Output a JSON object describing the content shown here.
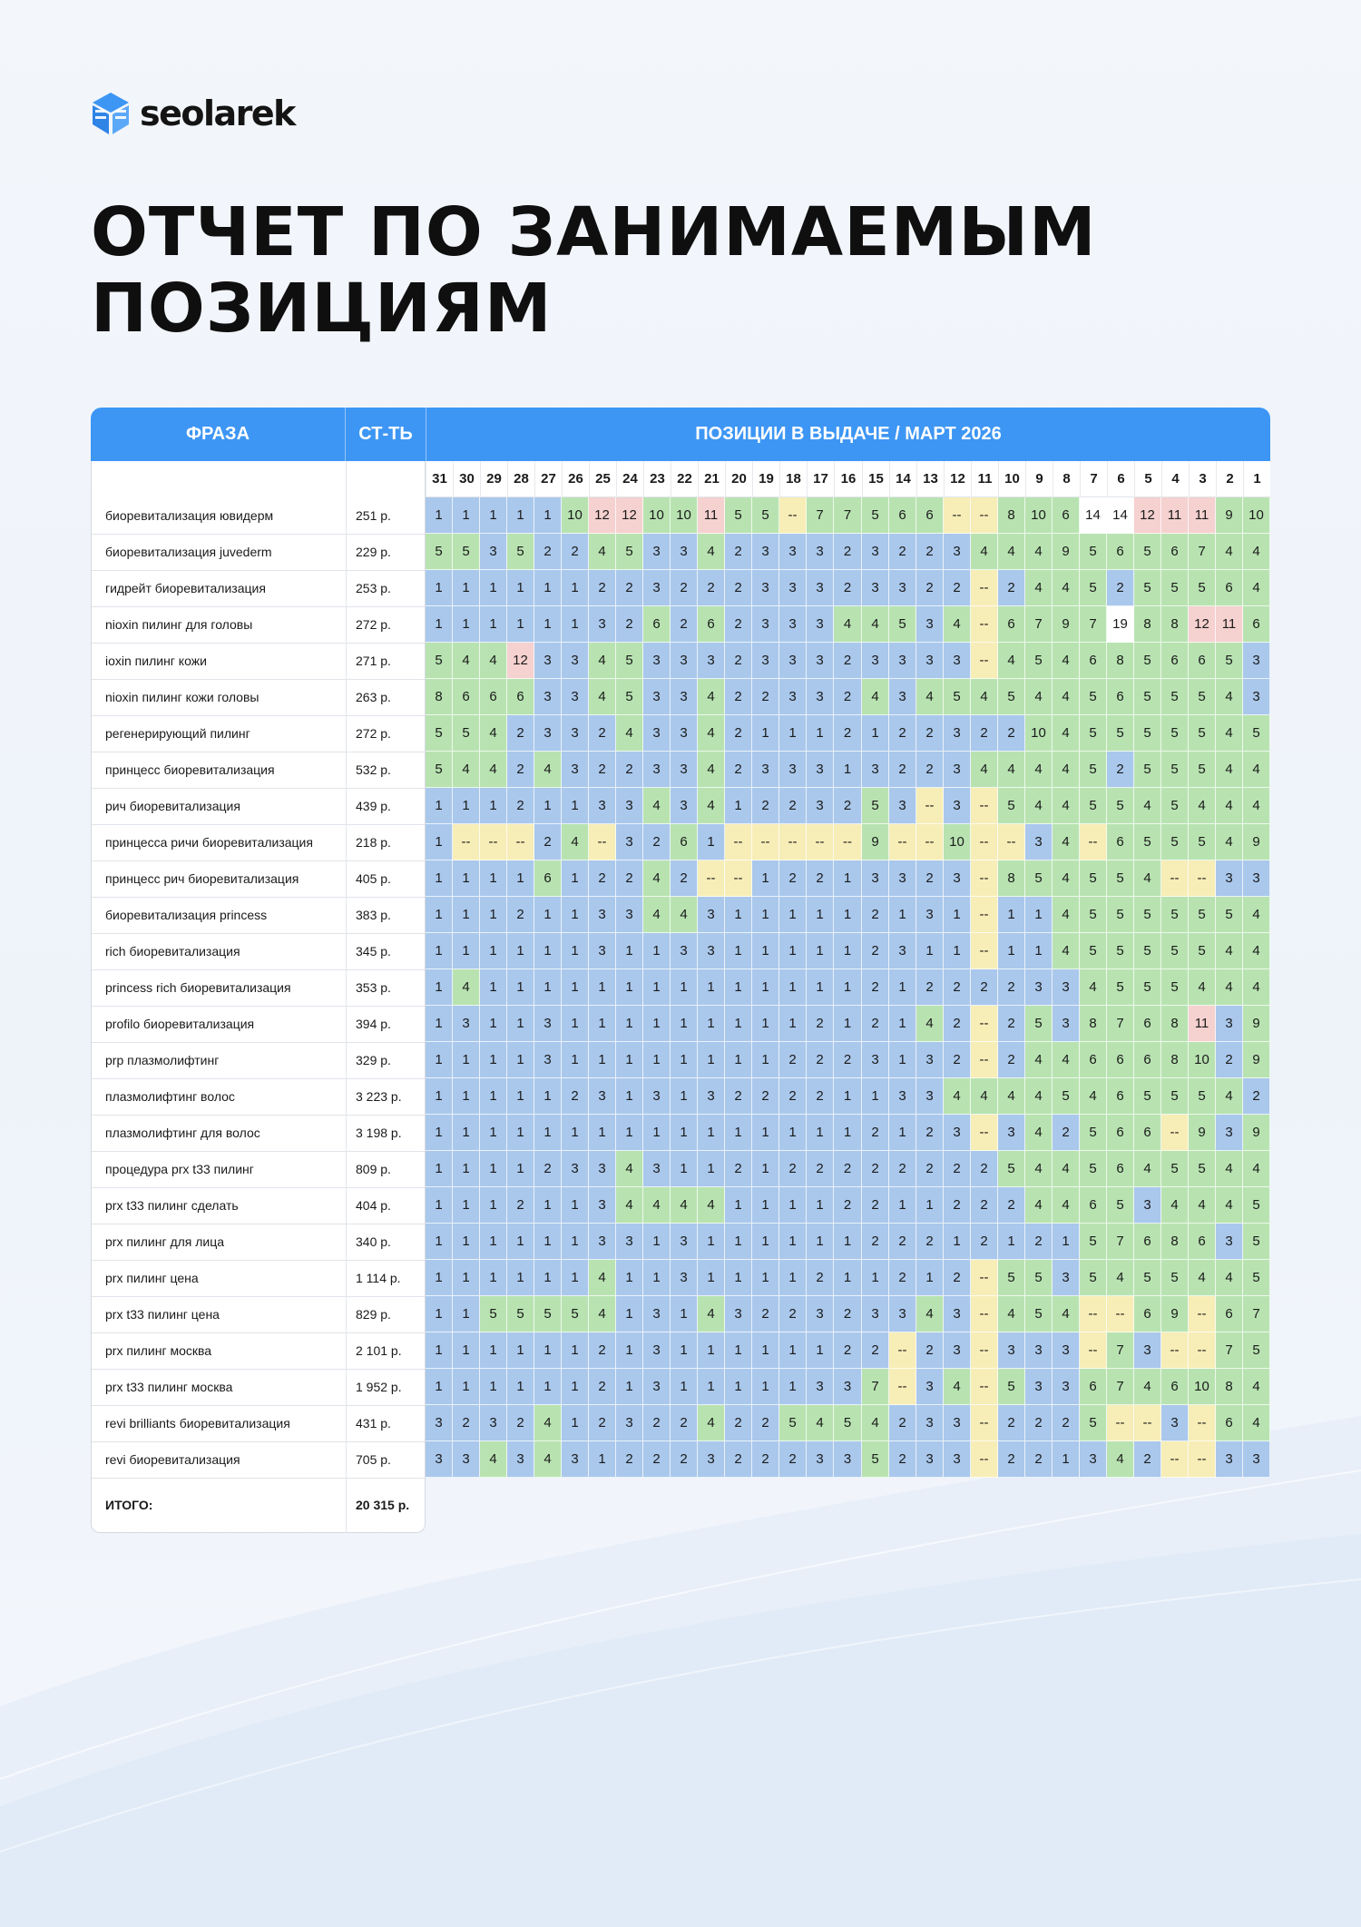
{
  "brand": {
    "name": "seolarek"
  },
  "title": {
    "line1": "ОТЧЕТ ПО ЗАНИМАЕМЫМ",
    "line2": "ПОЗИЦИЯМ"
  },
  "colors": {
    "header": "#3d96f4",
    "pos_1_3": "#aac8ec",
    "pos_4_10": "#b8e3b1",
    "pos_11_plus": "#f5d1cf",
    "not_found": "#f7edb7"
  },
  "table": {
    "headers": {
      "phrase": "ФРАЗА",
      "cost": "СТ-ТЬ",
      "positions": "ПОЗИЦИИ В ВЫДАЧЕ / МАРТ 2026"
    },
    "days": [
      "31",
      "30",
      "29",
      "28",
      "27",
      "26",
      "25",
      "24",
      "23",
      "22",
      "21",
      "20",
      "19",
      "18",
      "17",
      "16",
      "15",
      "14",
      "13",
      "12",
      "11",
      "10",
      "9",
      "8",
      "7",
      "6",
      "5",
      "4",
      "3",
      "2",
      "1"
    ],
    "rows": [
      {
        "phrase": "биоревитализация ювидерм",
        "cost": "251 р.",
        "pos": [
          "1",
          "1",
          "1",
          "1",
          "1",
          "10",
          "12",
          "12",
          "10",
          "10",
          "11",
          "5",
          "5",
          "--",
          "7",
          "7",
          "5",
          "6",
          "6",
          "--",
          "--",
          "8",
          "10",
          "6",
          "14",
          "14",
          "12",
          "11",
          "11",
          "9",
          "10"
        ]
      },
      {
        "phrase": "биоревитализация juvederm",
        "cost": "229 р.",
        "pos": [
          "5",
          "5",
          "3",
          "5",
          "2",
          "2",
          "4",
          "5",
          "3",
          "3",
          "4",
          "2",
          "3",
          "3",
          "3",
          "2",
          "3",
          "2",
          "2",
          "3",
          "4",
          "4",
          "4",
          "9",
          "5",
          "6",
          "5",
          "6",
          "7",
          "4",
          "4"
        ]
      },
      {
        "phrase": "гидрейт биоревитализация",
        "cost": "253 р.",
        "pos": [
          "1",
          "1",
          "1",
          "1",
          "1",
          "1",
          "2",
          "2",
          "3",
          "2",
          "2",
          "2",
          "3",
          "3",
          "3",
          "2",
          "3",
          "3",
          "2",
          "2",
          "--",
          "2",
          "4",
          "4",
          "5",
          "2",
          "5",
          "5",
          "5",
          "6",
          "4"
        ]
      },
      {
        "phrase": "nioxin пилинг для головы",
        "cost": "272 р.",
        "pos": [
          "1",
          "1",
          "1",
          "1",
          "1",
          "1",
          "3",
          "2",
          "6",
          "2",
          "6",
          "2",
          "3",
          "3",
          "3",
          "4",
          "4",
          "5",
          "3",
          "4",
          "--",
          "6",
          "7",
          "9",
          "7",
          "19",
          "8",
          "8",
          "12",
          "11",
          "6"
        ]
      },
      {
        "phrase": "ioxin пилинг кожи",
        "cost": "271 р.",
        "pos": [
          "5",
          "4",
          "4",
          "12",
          "3",
          "3",
          "4",
          "5",
          "3",
          "3",
          "3",
          "2",
          "3",
          "3",
          "3",
          "2",
          "3",
          "3",
          "3",
          "3",
          "--",
          "4",
          "5",
          "4",
          "6",
          "8",
          "5",
          "6",
          "6",
          "5",
          "3"
        ]
      },
      {
        "phrase": "nioxin пилинг кожи головы",
        "cost": "263 р.",
        "pos": [
          "8",
          "6",
          "6",
          "6",
          "3",
          "3",
          "4",
          "5",
          "3",
          "3",
          "4",
          "2",
          "2",
          "3",
          "3",
          "2",
          "4",
          "3",
          "4",
          "5",
          "4",
          "5",
          "4",
          "4",
          "5",
          "6",
          "5",
          "5",
          "5",
          "4",
          "3"
        ]
      },
      {
        "phrase": "регенерирующий пилинг",
        "cost": "272 р.",
        "pos": [
          "5",
          "5",
          "4",
          "2",
          "3",
          "3",
          "2",
          "4",
          "3",
          "3",
          "4",
          "2",
          "1",
          "1",
          "1",
          "2",
          "1",
          "2",
          "2",
          "3",
          "2",
          "2",
          "10",
          "4",
          "5",
          "5",
          "5",
          "5",
          "5",
          "4",
          "5"
        ]
      },
      {
        "phrase": "принцесс биоревитализация",
        "cost": "532 р.",
        "pos": [
          "5",
          "4",
          "4",
          "2",
          "4",
          "3",
          "2",
          "2",
          "3",
          "3",
          "4",
          "2",
          "3",
          "3",
          "3",
          "1",
          "3",
          "2",
          "2",
          "3",
          "4",
          "4",
          "4",
          "4",
          "5",
          "2",
          "5",
          "5",
          "5",
          "4",
          "4"
        ]
      },
      {
        "phrase": "рич биоревитализация",
        "cost": "439 р.",
        "pos": [
          "1",
          "1",
          "1",
          "2",
          "1",
          "1",
          "3",
          "3",
          "4",
          "3",
          "4",
          "1",
          "2",
          "2",
          "3",
          "2",
          "5",
          "3",
          "--",
          "3",
          "--",
          "5",
          "4",
          "4",
          "5",
          "5",
          "4",
          "5",
          "4",
          "4",
          "4"
        ]
      },
      {
        "phrase": "принцесса ричи биоревитализация",
        "cost": "218 р.",
        "pos": [
          "1",
          "--",
          "--",
          "--",
          "2",
          "4",
          "--",
          "3",
          "2",
          "6",
          "1",
          "--",
          "--",
          "--",
          "--",
          "--",
          "9",
          "--",
          "--",
          "10",
          "--",
          "--",
          "3",
          "4",
          "--",
          "6",
          "5",
          "5",
          "5",
          "4",
          "9"
        ]
      },
      {
        "phrase": "принцесс рич биоревитализация",
        "cost": "405 р.",
        "pos": [
          "1",
          "1",
          "1",
          "1",
          "6",
          "1",
          "2",
          "2",
          "4",
          "2",
          "--",
          "--",
          "1",
          "2",
          "2",
          "1",
          "3",
          "3",
          "2",
          "3",
          "--",
          "8",
          "5",
          "4",
          "5",
          "5",
          "4",
          "--",
          "--",
          "3",
          "3"
        ]
      },
      {
        "phrase": "биоревитализация princess",
        "cost": "383 р.",
        "pos": [
          "1",
          "1",
          "1",
          "2",
          "1",
          "1",
          "3",
          "3",
          "4",
          "4",
          "3",
          "1",
          "1",
          "1",
          "1",
          "1",
          "2",
          "1",
          "3",
          "1",
          "--",
          "1",
          "1",
          "4",
          "5",
          "5",
          "5",
          "5",
          "5",
          "5",
          "4"
        ]
      },
      {
        "phrase": "rich биоревитализация",
        "cost": "345 р.",
        "pos": [
          "1",
          "1",
          "1",
          "1",
          "1",
          "1",
          "3",
          "1",
          "1",
          "3",
          "3",
          "1",
          "1",
          "1",
          "1",
          "1",
          "2",
          "3",
          "1",
          "1",
          "--",
          "1",
          "1",
          "4",
          "5",
          "5",
          "5",
          "5",
          "5",
          "4",
          "4"
        ]
      },
      {
        "phrase": "princess rich биоревитализация",
        "cost": "353 р.",
        "pos": [
          "1",
          "4",
          "1",
          "1",
          "1",
          "1",
          "1",
          "1",
          "1",
          "1",
          "1",
          "1",
          "1",
          "1",
          "1",
          "1",
          "2",
          "1",
          "2",
          "2",
          "2",
          "2",
          "3",
          "3",
          "4",
          "5",
          "5",
          "5",
          "4",
          "4",
          "4"
        ]
      },
      {
        "phrase": "profilo биоревитализация",
        "cost": "394 р.",
        "pos": [
          "1",
          "3",
          "1",
          "1",
          "3",
          "1",
          "1",
          "1",
          "1",
          "1",
          "1",
          "1",
          "1",
          "1",
          "2",
          "1",
          "2",
          "1",
          "4",
          "2",
          "--",
          "2",
          "5",
          "3",
          "8",
          "7",
          "6",
          "8",
          "11",
          "3",
          "9"
        ]
      },
      {
        "phrase": "prp плазмолифтинг",
        "cost": "329 р.",
        "pos": [
          "1",
          "1",
          "1",
          "1",
          "3",
          "1",
          "1",
          "1",
          "1",
          "1",
          "1",
          "1",
          "1",
          "2",
          "2",
          "2",
          "3",
          "1",
          "3",
          "2",
          "--",
          "2",
          "4",
          "4",
          "6",
          "6",
          "6",
          "8",
          "10",
          "2",
          "9"
        ]
      },
      {
        "phrase": "плазмолифтинг волос",
        "cost": "3 223 р.",
        "pos": [
          "1",
          "1",
          "1",
          "1",
          "1",
          "2",
          "3",
          "1",
          "3",
          "1",
          "3",
          "2",
          "2",
          "2",
          "2",
          "1",
          "1",
          "3",
          "3",
          "4",
          "4",
          "4",
          "4",
          "5",
          "4",
          "6",
          "5",
          "5",
          "5",
          "4",
          "2"
        ]
      },
      {
        "phrase": "плазмолифтинг для волос",
        "cost": "3 198 р.",
        "pos": [
          "1",
          "1",
          "1",
          "1",
          "1",
          "1",
          "1",
          "1",
          "1",
          "1",
          "1",
          "1",
          "1",
          "1",
          "1",
          "1",
          "2",
          "1",
          "2",
          "3",
          "--",
          "3",
          "4",
          "2",
          "5",
          "6",
          "6",
          "--",
          "9",
          "3",
          "9"
        ]
      },
      {
        "phrase": "процедура prx t33 пилинг",
        "cost": "809 р.",
        "pos": [
          "1",
          "1",
          "1",
          "1",
          "2",
          "3",
          "3",
          "4",
          "3",
          "1",
          "1",
          "2",
          "1",
          "2",
          "2",
          "2",
          "2",
          "2",
          "2",
          "2",
          "2",
          "5",
          "4",
          "4",
          "5",
          "6",
          "4",
          "5",
          "5",
          "4",
          "4"
        ]
      },
      {
        "phrase": "prx t33 пилинг сделать",
        "cost": "404 р.",
        "pos": [
          "1",
          "1",
          "1",
          "2",
          "1",
          "1",
          "3",
          "4",
          "4",
          "4",
          "4",
          "1",
          "1",
          "1",
          "1",
          "2",
          "2",
          "1",
          "1",
          "2",
          "2",
          "2",
          "4",
          "4",
          "6",
          "5",
          "3",
          "4",
          "4",
          "4",
          "5"
        ]
      },
      {
        "phrase": "prx пилинг для лица",
        "cost": "340 р.",
        "pos": [
          "1",
          "1",
          "1",
          "1",
          "1",
          "1",
          "3",
          "3",
          "1",
          "3",
          "1",
          "1",
          "1",
          "1",
          "1",
          "1",
          "2",
          "2",
          "2",
          "1",
          "2",
          "1",
          "2",
          "1",
          "5",
          "7",
          "6",
          "8",
          "6",
          "3",
          "5"
        ]
      },
      {
        "phrase": "prx пилинг цена",
        "cost": "1 114 р.",
        "pos": [
          "1",
          "1",
          "1",
          "1",
          "1",
          "1",
          "4",
          "1",
          "1",
          "3",
          "1",
          "1",
          "1",
          "1",
          "2",
          "1",
          "1",
          "2",
          "1",
          "2",
          "--",
          "5",
          "5",
          "3",
          "5",
          "4",
          "5",
          "5",
          "4",
          "4",
          "5"
        ]
      },
      {
        "phrase": "prx t33 пилинг цена",
        "cost": "829 р.",
        "pos": [
          "1",
          "1",
          "5",
          "5",
          "5",
          "5",
          "4",
          "1",
          "3",
          "1",
          "4",
          "3",
          "2",
          "2",
          "3",
          "2",
          "3",
          "3",
          "4",
          "3",
          "--",
          "4",
          "5",
          "4",
          "--",
          "--",
          "6",
          "9",
          "--",
          "6",
          "7"
        ]
      },
      {
        "phrase": "prx пилинг москва",
        "cost": "2 101 р.",
        "pos": [
          "1",
          "1",
          "1",
          "1",
          "1",
          "1",
          "2",
          "1",
          "3",
          "1",
          "1",
          "1",
          "1",
          "1",
          "1",
          "2",
          "2",
          "--",
          "2",
          "3",
          "--",
          "3",
          "3",
          "3",
          "--",
          "7",
          "3",
          "--",
          "--",
          "7",
          "5"
        ]
      },
      {
        "phrase": "prx t33 пилинг москва",
        "cost": "1 952 р.",
        "pos": [
          "1",
          "1",
          "1",
          "1",
          "1",
          "1",
          "2",
          "1",
          "3",
          "1",
          "1",
          "1",
          "1",
          "1",
          "3",
          "3",
          "7",
          "--",
          "3",
          "4",
          "--",
          "5",
          "3",
          "3",
          "6",
          "7",
          "4",
          "6",
          "10",
          "8",
          "4"
        ]
      },
      {
        "phrase": "revi brilliants биоревитализация",
        "cost": "431 р.",
        "pos": [
          "3",
          "2",
          "3",
          "2",
          "4",
          "1",
          "2",
          "3",
          "2",
          "2",
          "4",
          "2",
          "2",
          "5",
          "4",
          "5",
          "4",
          "2",
          "3",
          "3",
          "--",
          "2",
          "2",
          "2",
          "5",
          "--",
          "--",
          "3",
          "--",
          "6",
          "4"
        ]
      },
      {
        "phrase": "revi биоревитализация",
        "cost": "705 р.",
        "pos": [
          "3",
          "3",
          "4",
          "3",
          "4",
          "3",
          "1",
          "2",
          "2",
          "2",
          "3",
          "2",
          "2",
          "2",
          "3",
          "3",
          "5",
          "2",
          "3",
          "3",
          "--",
          "2",
          "2",
          "1",
          "3",
          "4",
          "2",
          "--",
          "--",
          "3",
          "3"
        ]
      }
    ],
    "total": {
      "label": "ИТОГО:",
      "value": "20 315 р."
    }
  }
}
